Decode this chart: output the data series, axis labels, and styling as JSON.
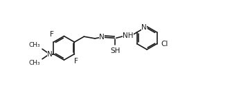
{
  "background_color": "#ffffff",
  "line_color": "#1a1a1a",
  "line_width": 1.2,
  "font_size": 7.5,
  "figsize": [
    3.35,
    1.41
  ],
  "dpi": 100,
  "xlim": [
    0,
    10
  ],
  "ylim": [
    0,
    3.0
  ]
}
